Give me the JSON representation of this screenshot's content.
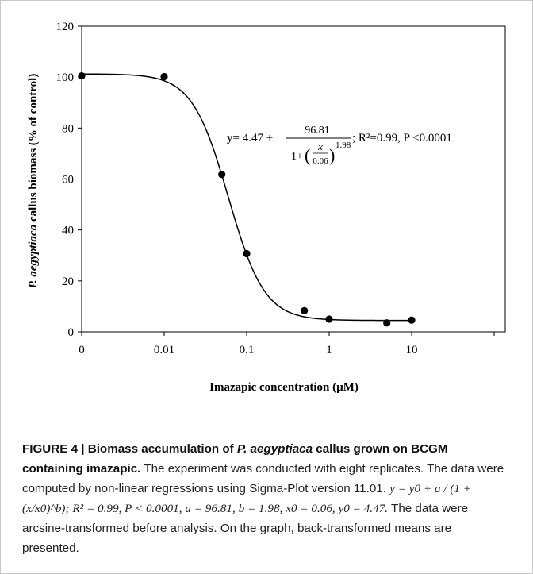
{
  "chart_data": {
    "type": "scatter",
    "xlabel": "Imazapic concentration (µM)",
    "ylabel_species": "P. aegyptiaca",
    "ylabel_rest": " callus biomass (% of control)",
    "xticks": [
      "0",
      "0.01",
      "0.1",
      "1",
      "10"
    ],
    "yticks": [
      0,
      20,
      40,
      60,
      80,
      100,
      120
    ],
    "ylim": [
      0,
      120
    ],
    "x_scale": "log",
    "grid": false,
    "points": [
      {
        "x": 0,
        "y": 100.5
      },
      {
        "x": 0.01,
        "y": 100.2
      },
      {
        "x": 0.05,
        "y": 61.8
      },
      {
        "x": 0.1,
        "y": 30.7
      },
      {
        "x": 0.5,
        "y": 8.3
      },
      {
        "x": 1,
        "y": 5.0
      },
      {
        "x": 5,
        "y": 3.5
      },
      {
        "x": 10,
        "y": 4.6
      }
    ],
    "fit": {
      "a": 96.81,
      "b": 1.98,
      "x0": 0.06,
      "y0": 4.47
    },
    "equation": {
      "lhs": "y= 4.47 + ",
      "numerator": "96.81",
      "denominator_prefix": "1+",
      "frac_x": "x",
      "frac_x0": "0.06",
      "exponent": "1.98",
      "stats": "; R²=0.99, P <0.0001"
    }
  },
  "caption": {
    "figure_label": "FIGURE 4 | Biomass accumulation of ",
    "figure_species": "P. aegyptiaca",
    "figure_title_rest": " callus grown on BCGM containing imazapic.",
    "sentence1": " The experiment was conducted with eight replicates. The data were computed by non-linear regressions using Sigma-Plot version 11.01. ",
    "formula": "y = y0 + a / (1 + (x/x0)^b); R² = 0.99, P < 0.0001, a = 96.81, b = 1.98, x0 = 0.06, y0 = 4.47.",
    "sentence2": " The data were arcsine-transformed before analysis. On the graph, back-transformed means are presented."
  }
}
